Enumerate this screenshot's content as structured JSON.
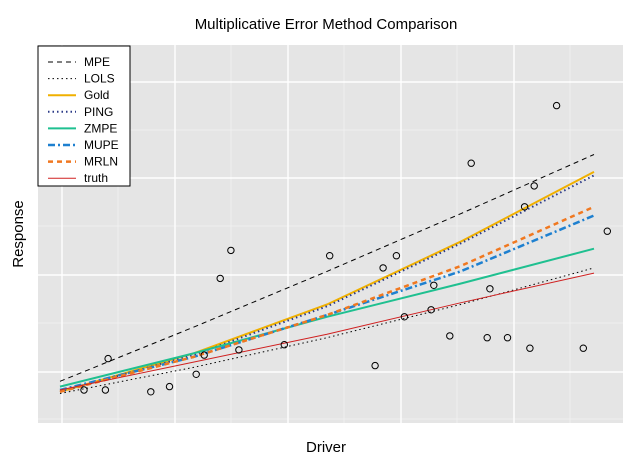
{
  "chart_data": {
    "type": "line",
    "title": "Multiplicative Error Method Comparison",
    "xlabel": "Driver",
    "ylabel": "Response",
    "xlim": [
      0,
      1
    ],
    "ylim": [
      0,
      1
    ],
    "grid": true,
    "legend_position": "top-left",
    "points": [
      {
        "x": 0.045,
        "y": 0.04
      },
      {
        "x": 0.085,
        "y": 0.04
      },
      {
        "x": 0.09,
        "y": 0.13
      },
      {
        "x": 0.17,
        "y": 0.035
      },
      {
        "x": 0.205,
        "y": 0.05
      },
      {
        "x": 0.255,
        "y": 0.085
      },
      {
        "x": 0.27,
        "y": 0.14
      },
      {
        "x": 0.3,
        "y": 0.36
      },
      {
        "x": 0.32,
        "y": 0.44
      },
      {
        "x": 0.335,
        "y": 0.155
      },
      {
        "x": 0.42,
        "y": 0.17
      },
      {
        "x": 0.505,
        "y": 0.425
      },
      {
        "x": 0.59,
        "y": 0.11
      },
      {
        "x": 0.605,
        "y": 0.39
      },
      {
        "x": 0.63,
        "y": 0.425
      },
      {
        "x": 0.645,
        "y": 0.25
      },
      {
        "x": 0.695,
        "y": 0.27
      },
      {
        "x": 0.7,
        "y": 0.34
      },
      {
        "x": 0.73,
        "y": 0.195
      },
      {
        "x": 0.77,
        "y": 0.69
      },
      {
        "x": 0.8,
        "y": 0.19
      },
      {
        "x": 0.805,
        "y": 0.33
      },
      {
        "x": 0.838,
        "y": 0.19
      },
      {
        "x": 0.87,
        "y": 0.565
      },
      {
        "x": 0.88,
        "y": 0.16
      },
      {
        "x": 0.888,
        "y": 0.625
      },
      {
        "x": 0.93,
        "y": 0.855
      },
      {
        "x": 0.98,
        "y": 0.16
      },
      {
        "x": 1.025,
        "y": 0.495
      }
    ],
    "series": [
      {
        "name": "MPE",
        "color": "#000000",
        "style": "dashed",
        "width": 1,
        "x": [
          0,
          0.25,
          0.5,
          0.75,
          1.0
        ],
        "y": [
          0.065,
          0.22,
          0.38,
          0.545,
          0.715
        ]
      },
      {
        "name": "LOLS",
        "color": "#000000",
        "style": "dotted",
        "width": 1,
        "x": [
          0,
          0.25,
          0.5,
          0.75,
          1.0
        ],
        "y": [
          0.03,
          0.105,
          0.19,
          0.285,
          0.39
        ]
      },
      {
        "name": "Gold",
        "color": "#F0B000",
        "style": "solid",
        "width": 2,
        "x": [
          0,
          0.25,
          0.5,
          0.75,
          1.0
        ],
        "y": [
          0.035,
          0.145,
          0.285,
          0.465,
          0.665
        ]
      },
      {
        "name": "PING",
        "color": "#2B3A87",
        "style": "dotted",
        "width": 2,
        "x": [
          0,
          0.25,
          0.5,
          0.75,
          1.0
        ],
        "y": [
          0.035,
          0.14,
          0.28,
          0.46,
          0.655
        ]
      },
      {
        "name": "ZMPE",
        "color": "#1FC090",
        "style": "solid",
        "width": 2,
        "x": [
          0,
          0.25,
          0.5,
          0.75,
          1.0
        ],
        "y": [
          0.05,
          0.145,
          0.25,
          0.345,
          0.445
        ]
      },
      {
        "name": "MUPE",
        "color": "#1E80D0",
        "style": "dashdot",
        "width": 2.5,
        "x": [
          0,
          0.25,
          0.5,
          0.75,
          1.0
        ],
        "y": [
          0.04,
          0.135,
          0.255,
          0.38,
          0.54
        ]
      },
      {
        "name": "MRLN",
        "color": "#F07820",
        "style": "dashed",
        "width": 2.5,
        "x": [
          0,
          0.25,
          0.5,
          0.75,
          1.0
        ],
        "y": [
          0.035,
          0.135,
          0.255,
          0.395,
          0.565
        ]
      },
      {
        "name": "truth",
        "color": "#D02020",
        "style": "solid",
        "width": 1,
        "x": [
          0,
          0.25,
          0.5,
          0.75,
          1.0
        ],
        "y": [
          0.04,
          0.12,
          0.2,
          0.29,
          0.375
        ]
      }
    ]
  }
}
